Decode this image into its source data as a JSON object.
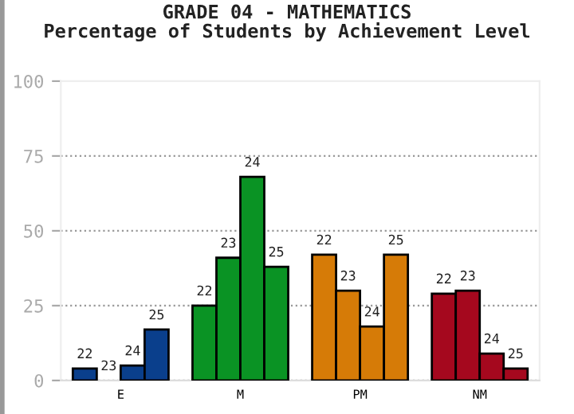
{
  "chart_data": {
    "type": "bar",
    "title": "GRADE 04 - MATHEMATICS\nPercentage of Students by Achievement Level",
    "categories": [
      "E",
      "M",
      "PM",
      "NM"
    ],
    "series": [
      {
        "name": "22",
        "colors": [
          "#0a3f8c",
          "#0a9324",
          "#d67b07",
          "#a5081e"
        ],
        "values": [
          4,
          25,
          42,
          29
        ]
      },
      {
        "name": "23",
        "colors": [
          "#0a3f8c",
          "#0a9324",
          "#d67b07",
          "#a5081e"
        ],
        "values": [
          0,
          41,
          30,
          30
        ]
      },
      {
        "name": "24",
        "colors": [
          "#0a3f8c",
          "#0a9324",
          "#d67b07",
          "#a5081e"
        ],
        "values": [
          5,
          68,
          18,
          9
        ]
      },
      {
        "name": "25",
        "colors": [
          "#0a3f8c",
          "#0a9324",
          "#d67b07",
          "#a5081e"
        ],
        "values": [
          17,
          38,
          42,
          4
        ]
      }
    ],
    "ylim": [
      0,
      100
    ],
    "yticks": [
      0,
      25,
      50,
      75,
      100
    ],
    "grid": "y",
    "legend": false
  }
}
